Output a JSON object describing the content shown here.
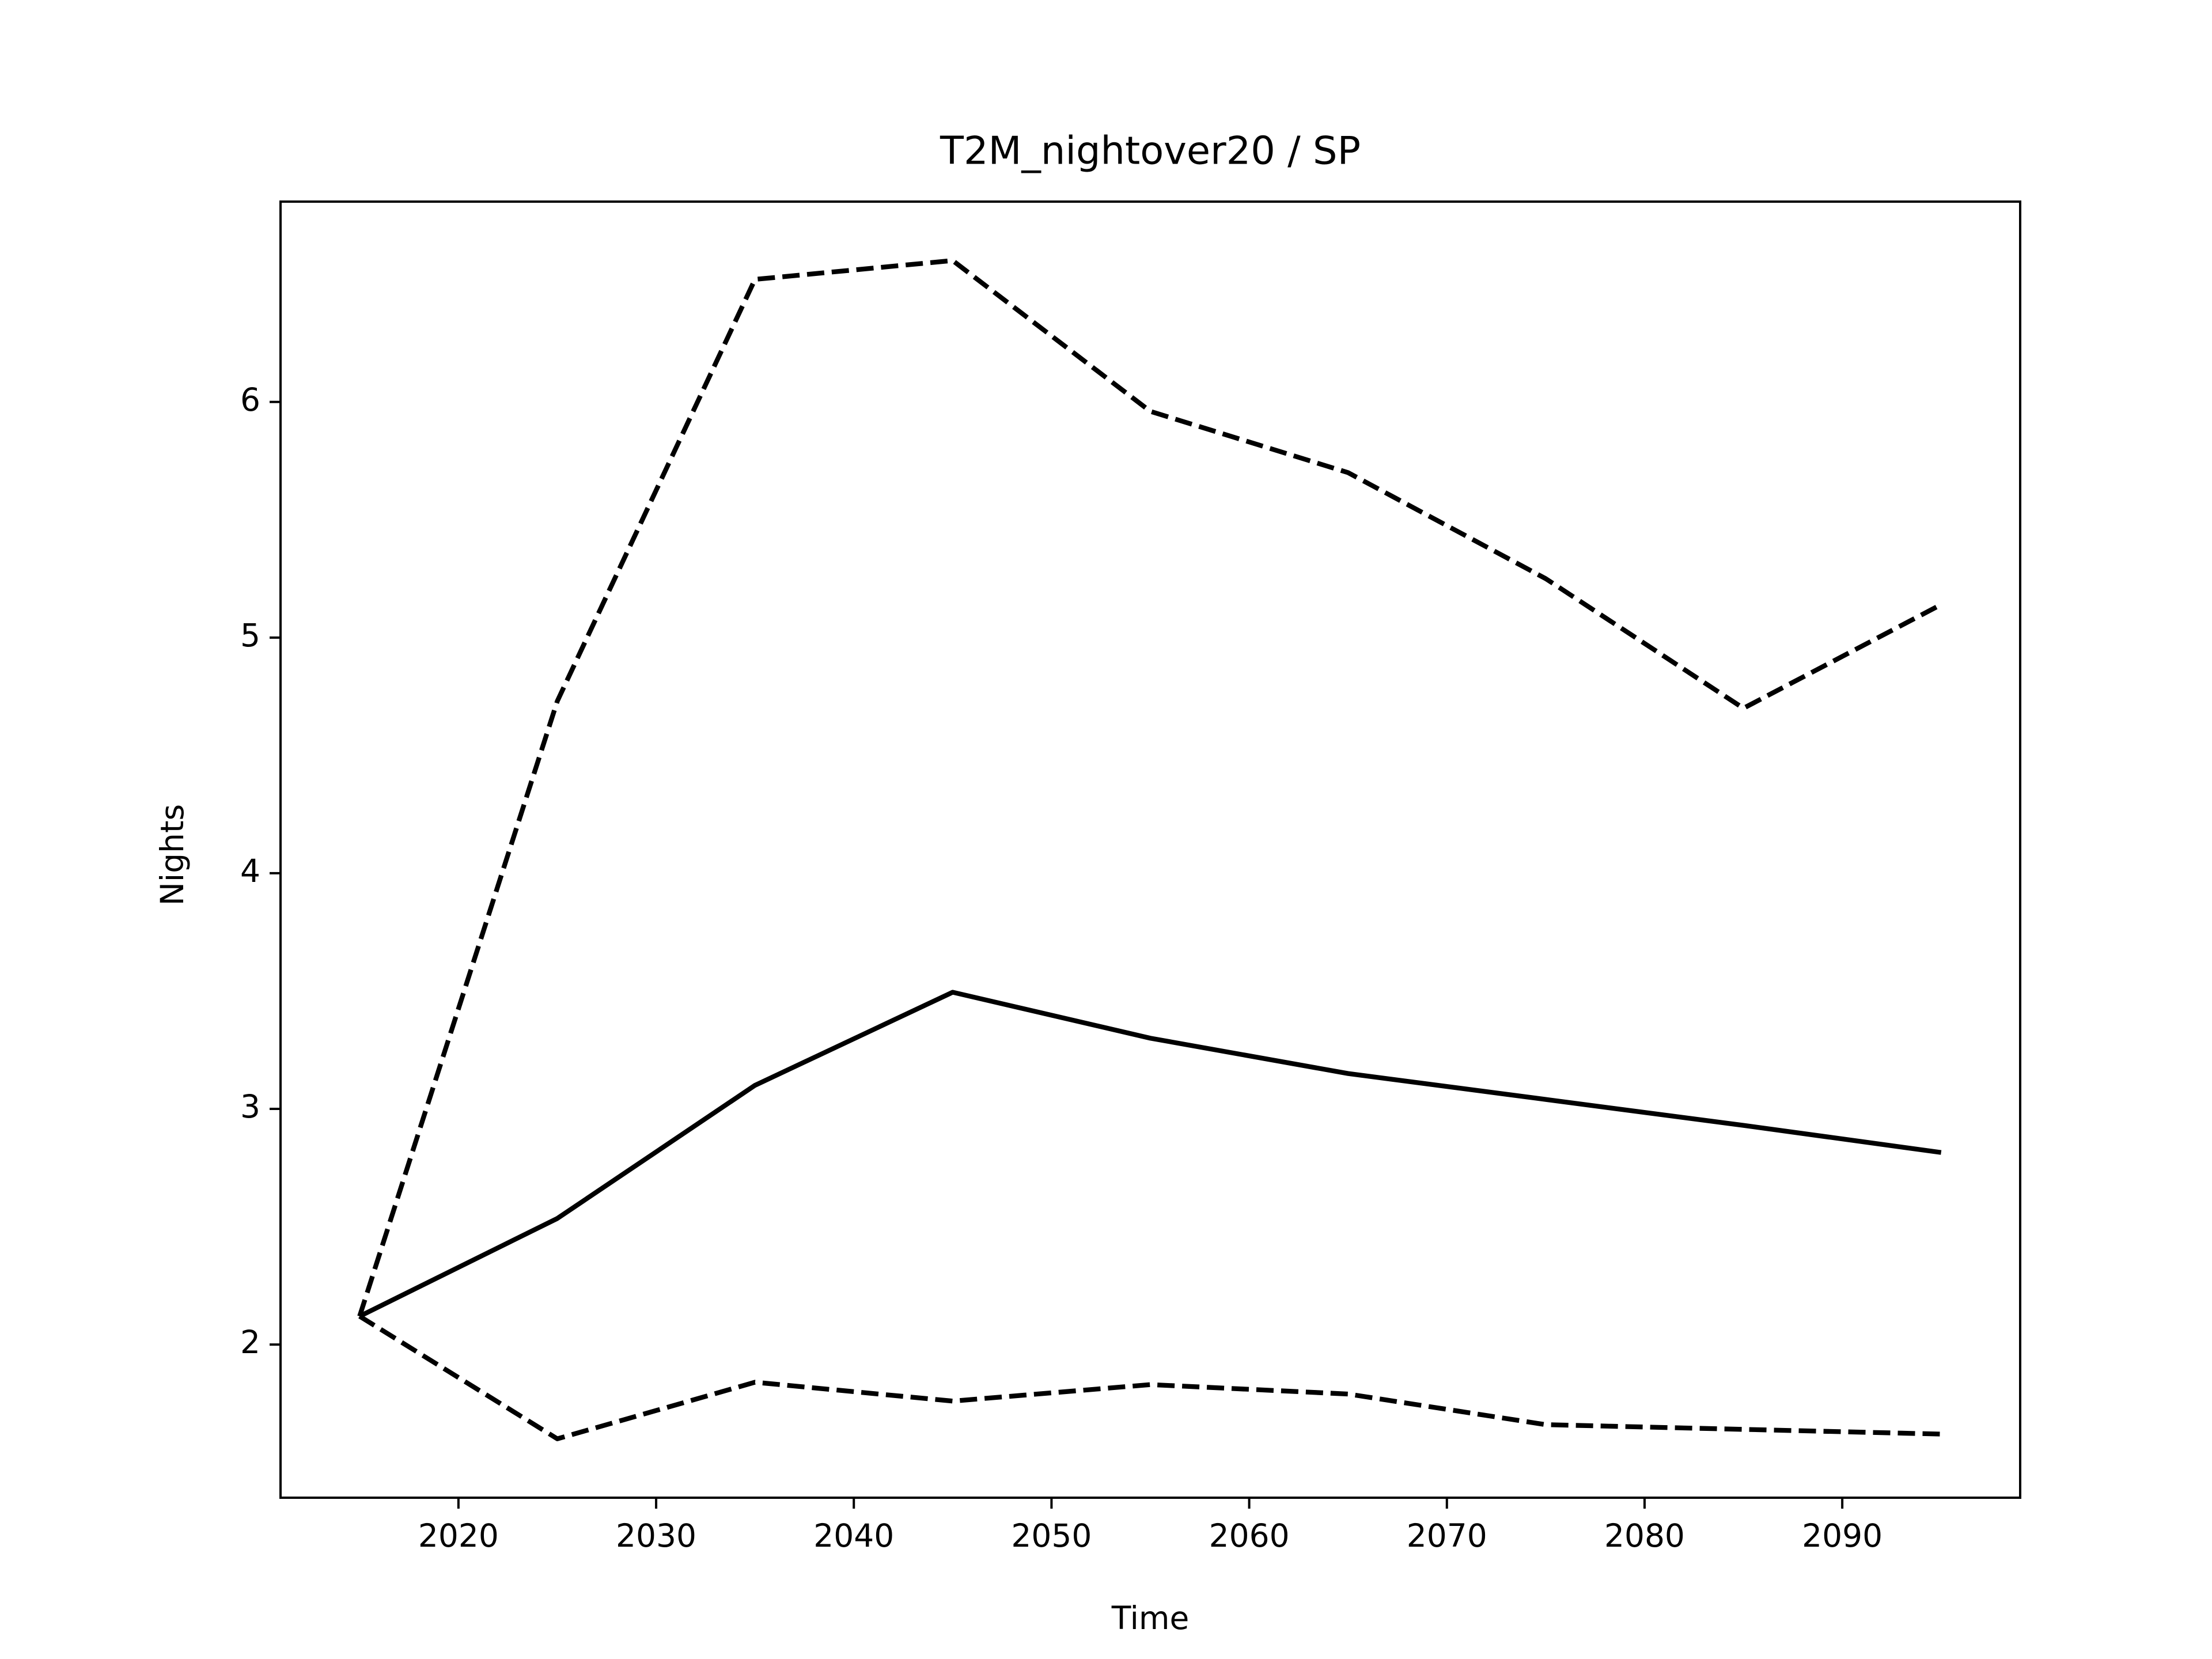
{
  "chart_data": {
    "type": "line",
    "title": "T2M_nightover20 / SP",
    "xlabel": "Time",
    "ylabel": "Nights",
    "x": [
      2015,
      2025,
      2035,
      2045,
      2055,
      2065,
      2075,
      2085,
      2095
    ],
    "series": [
      {
        "color": "#000000",
        "style": "solid",
        "values": [
          2.12,
          2.535,
          3.1,
          3.495,
          3.3,
          3.15,
          3.04,
          2.93,
          2.815
        ]
      },
      {
        "color": "#000000",
        "style": "dashed",
        "values": [
          2.12,
          4.73,
          6.52,
          6.6,
          5.96,
          5.7,
          5.25,
          4.7,
          5.14
        ]
      },
      {
        "color": "#000000",
        "style": "dashed",
        "values": [
          2.12,
          1.6,
          1.84,
          1.76,
          1.83,
          1.79,
          1.66,
          1.64,
          1.62
        ]
      }
    ],
    "xlim": [
      2011,
      2099
    ],
    "xticks": [
      2020,
      2030,
      2040,
      2050,
      2060,
      2070,
      2080,
      2090
    ],
    "ylim": [
      1.35,
      6.85
    ],
    "yticks": [
      2,
      3,
      4,
      5,
      6
    ],
    "grid": false
  }
}
